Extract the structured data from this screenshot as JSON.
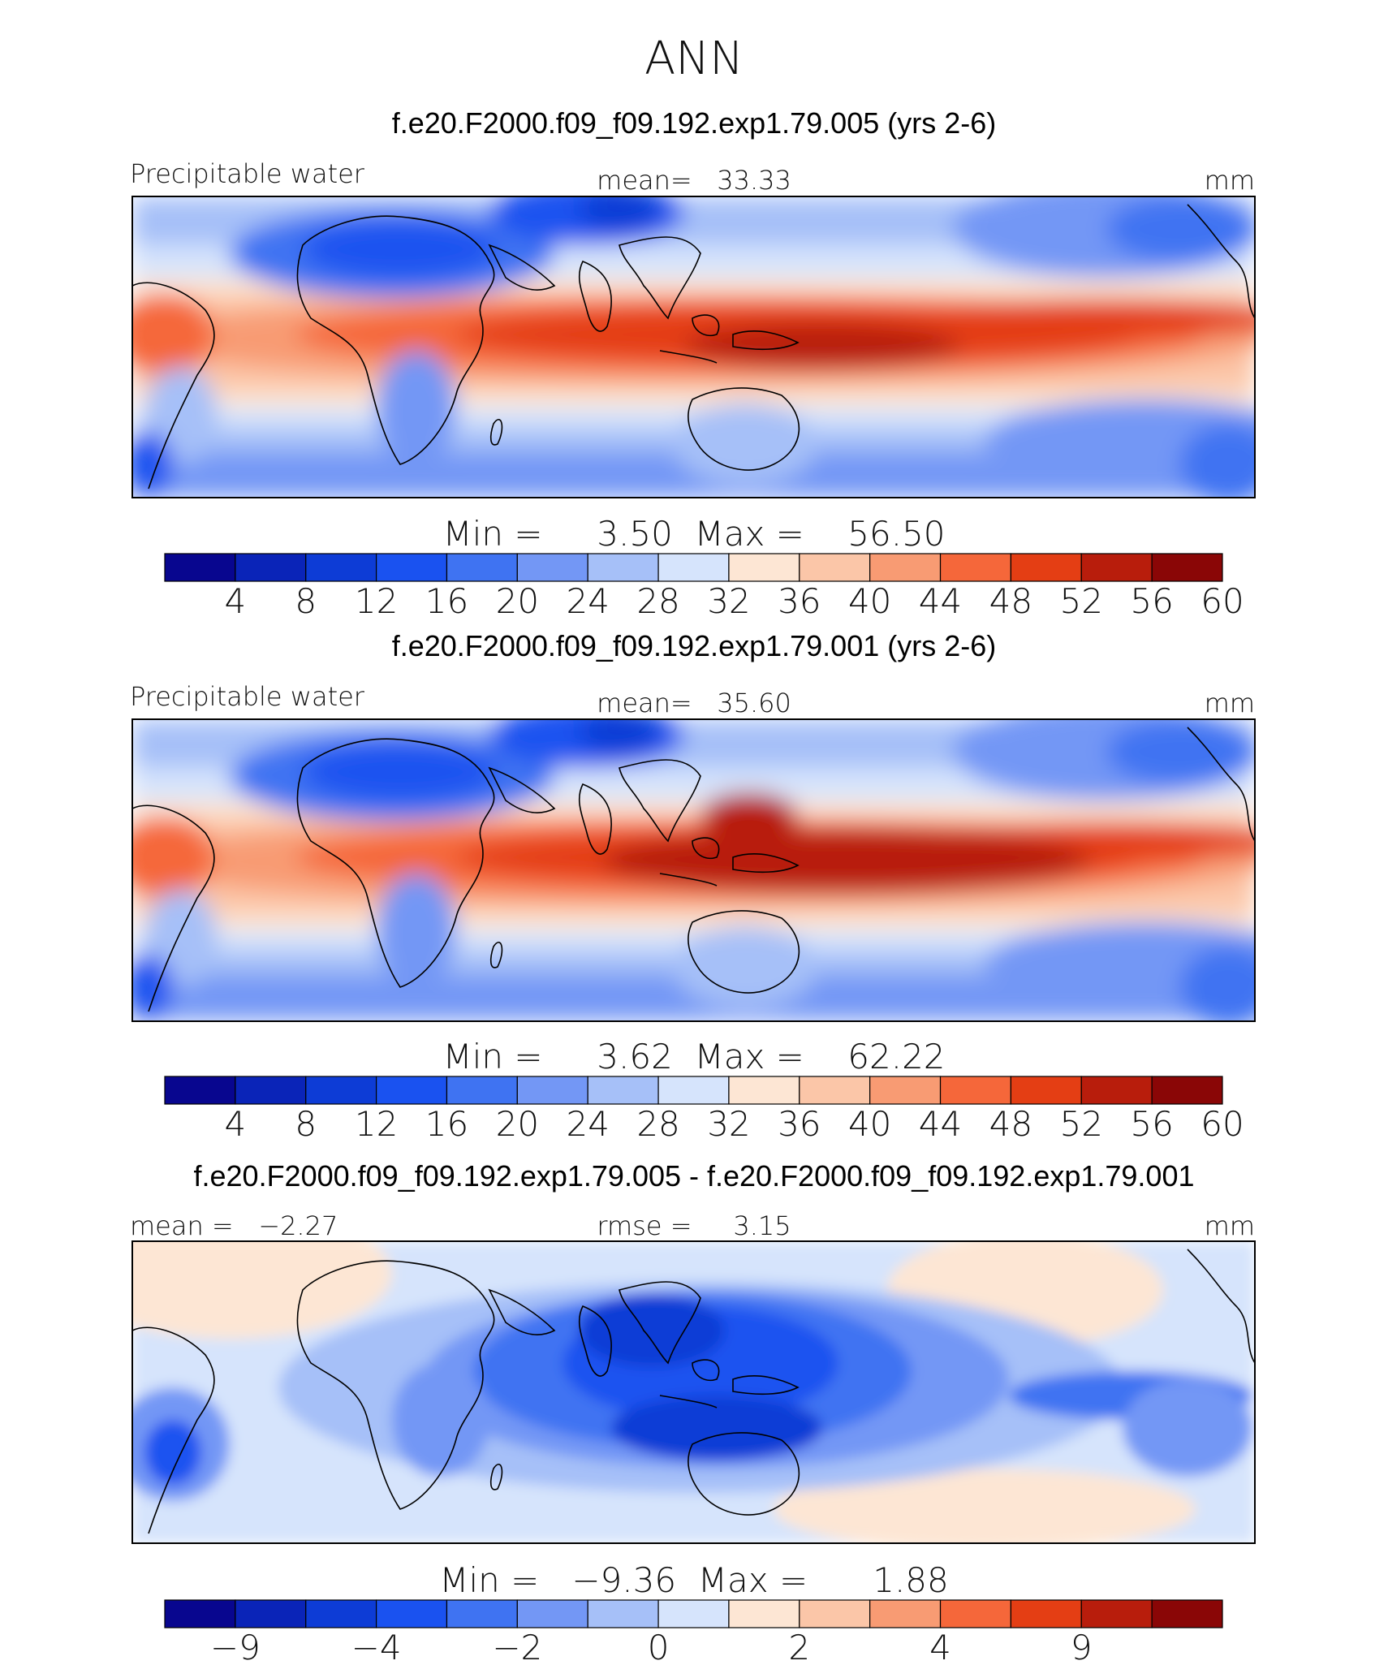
{
  "figure": {
    "title": "ANN"
  },
  "chart_data": [
    {
      "type": "heatmap",
      "title": "f.e20.F2000.f09_f09.192.exp1.79.005 (yrs 2-6)",
      "left_label": "Precipitable water",
      "center_label": "mean=   33.33",
      "units": "mm",
      "stats_label": "Min =     3.50  Max =    56.50",
      "min": 3.5,
      "max": 56.5,
      "mean": 33.33,
      "colorbar": {
        "ticks": [
          "4",
          "8",
          "12",
          "16",
          "20",
          "24",
          "28",
          "32",
          "36",
          "40",
          "44",
          "48",
          "52",
          "56",
          "60"
        ],
        "colors": [
          "#08068f",
          "#0a24b8",
          "#0d3cd6",
          "#1a52f0",
          "#3f73f2",
          "#7397f5",
          "#a6c0f8",
          "#d6e4fc",
          "#fde6d4",
          "#fbc6a8",
          "#f89b73",
          "#f5673a",
          "#e43e14",
          "#b81d0c",
          "#8a0606"
        ]
      }
    },
    {
      "type": "heatmap",
      "title": "f.e20.F2000.f09_f09.192.exp1.79.001 (yrs 2-6)",
      "left_label": "Precipitable water",
      "center_label": "mean=   35.60",
      "units": "mm",
      "stats_label": "Min =     3.62  Max =    62.22",
      "min": 3.62,
      "max": 62.22,
      "mean": 35.6,
      "colorbar": {
        "ticks": [
          "4",
          "8",
          "12",
          "16",
          "20",
          "24",
          "28",
          "32",
          "36",
          "40",
          "44",
          "48",
          "52",
          "56",
          "60"
        ],
        "colors": [
          "#08068f",
          "#0a24b8",
          "#0d3cd6",
          "#1a52f0",
          "#3f73f2",
          "#7397f5",
          "#a6c0f8",
          "#d6e4fc",
          "#fde6d4",
          "#fbc6a8",
          "#f89b73",
          "#f5673a",
          "#e43e14",
          "#b81d0c",
          "#8a0606"
        ]
      }
    },
    {
      "type": "heatmap",
      "title": "f.e20.F2000.f09_f09.192.exp1.79.005 - f.e20.F2000.f09_f09.192.exp1.79.001",
      "left_label": "mean =   −2.27",
      "center_label": "rmse =     3.15",
      "units": "mm",
      "stats_label": "Min =   −9.36  Max =      1.88",
      "min": -9.36,
      "max": 1.88,
      "mean": -2.27,
      "rmse": 3.15,
      "colorbar": {
        "ticks": [
          "−9",
          "−4",
          "−2",
          "0",
          "2",
          "4",
          "9"
        ],
        "colors": [
          "#08068f",
          "#0a24b8",
          "#0d3cd6",
          "#1a52f0",
          "#3f73f2",
          "#7397f5",
          "#a6c0f8",
          "#d6e4fc",
          "#fde6d4",
          "#fbc6a8",
          "#f89b73",
          "#f5673a",
          "#e43e14",
          "#b81d0c",
          "#8a0606"
        ]
      }
    }
  ]
}
